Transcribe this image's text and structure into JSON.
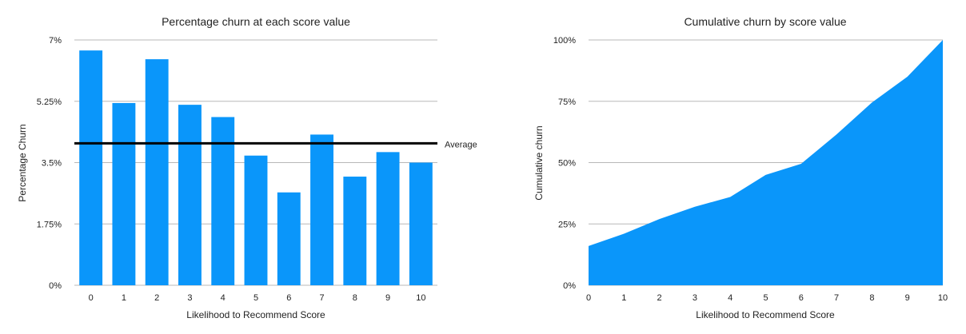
{
  "chart_data": [
    {
      "type": "bar",
      "title": "Percentage churn at each score value",
      "xlabel": "Likelihood to Recommend Score",
      "ylabel": "Percentage Churn",
      "categories": [
        "0",
        "1",
        "2",
        "3",
        "4",
        "5",
        "6",
        "7",
        "8",
        "9",
        "10"
      ],
      "values": [
        6.7,
        5.2,
        6.45,
        5.15,
        4.8,
        3.7,
        2.65,
        4.3,
        3.1,
        3.8,
        3.5
      ],
      "ylim": [
        0,
        7
      ],
      "yticks": [
        "0%",
        "1.75%",
        "3.5%",
        "5.25%",
        "7%"
      ],
      "ytick_values": [
        0,
        1.75,
        3.5,
        5.25,
        7
      ],
      "reference_line": {
        "label": "Average",
        "value": 4.05,
        "color": "#000000"
      },
      "bar_color": "#0a96fa",
      "grid": true,
      "legend": "none"
    },
    {
      "type": "area",
      "title": "Cumulative churn by score value",
      "xlabel": "Likelihood to Recommend Score",
      "ylabel": "Cumulative churn",
      "x": [
        "0",
        "1",
        "2",
        "3",
        "4",
        "5",
        "6",
        "7",
        "8",
        "9",
        "10"
      ],
      "values": [
        16,
        21,
        27,
        32,
        36,
        45,
        49.5,
        61.5,
        74.5,
        85,
        100
      ],
      "ylim": [
        0,
        100
      ],
      "yticks": [
        "0%",
        "25%",
        "50%",
        "75%",
        "100%"
      ],
      "ytick_values": [
        0,
        25,
        50,
        75,
        100
      ],
      "fill_color": "#0a96fa",
      "grid": true,
      "legend": "none"
    }
  ]
}
